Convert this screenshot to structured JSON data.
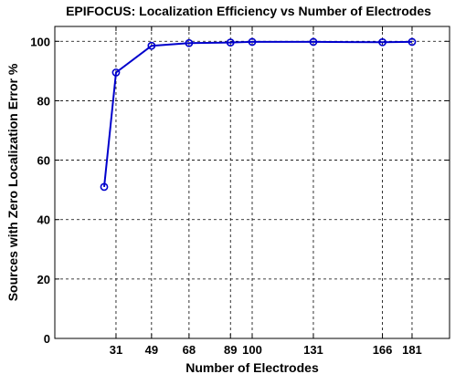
{
  "chart_data": {
    "type": "line",
    "title": "EPIFOCUS: Localization Efficiency vs Number of Electrodes",
    "xlabel": "Number of Electrodes",
    "ylabel": "Sources with Zero Localization Error %",
    "xlim": [
      0,
      200
    ],
    "ylim": [
      0,
      105
    ],
    "xticks": [
      31,
      49,
      68,
      89,
      100,
      131,
      166,
      181
    ],
    "yticks": [
      0,
      20,
      40,
      60,
      80,
      100
    ],
    "grid": true,
    "series": [
      {
        "color": "#0000cc",
        "marker": "circle",
        "x": [
          25,
          31,
          49,
          68,
          89,
          100,
          131,
          166,
          181
        ],
        "y": [
          51,
          89.5,
          98.5,
          99.4,
          99.6,
          99.8,
          99.8,
          99.7,
          99.8
        ]
      }
    ]
  }
}
